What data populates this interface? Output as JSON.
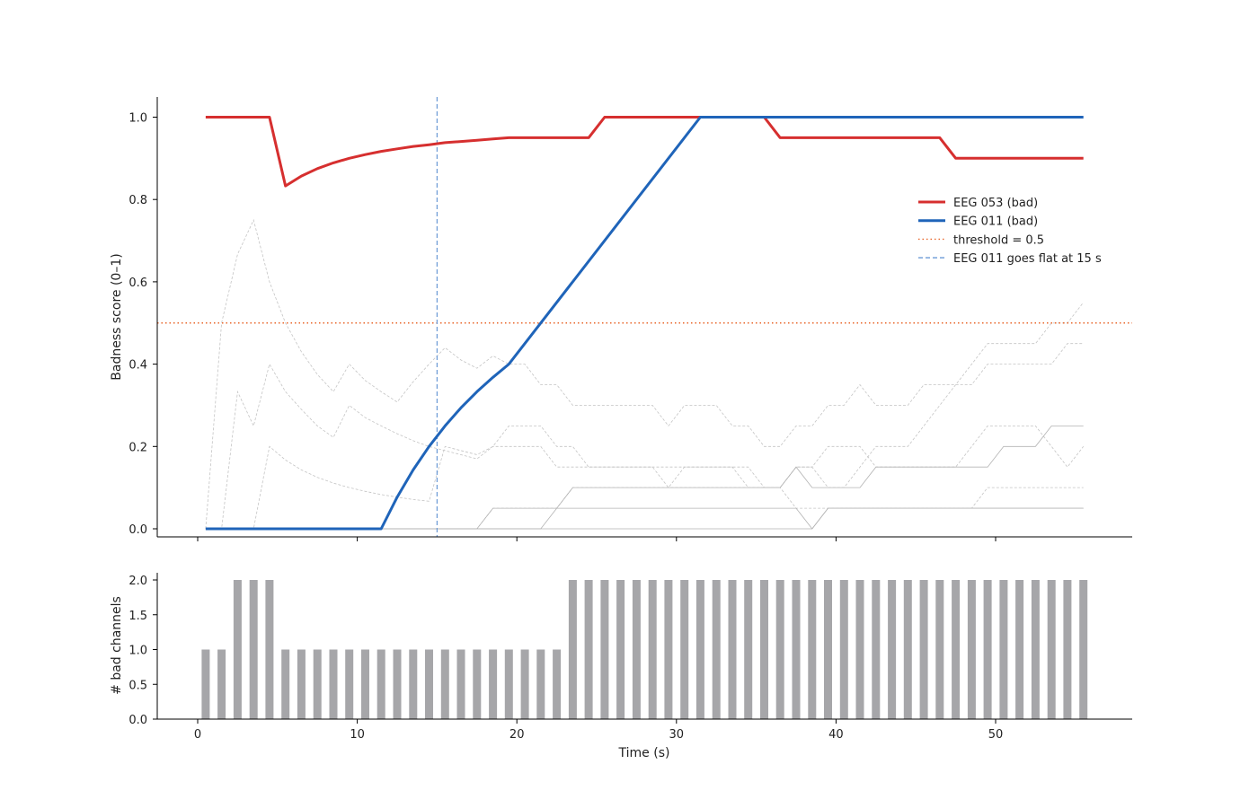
{
  "chart_data": [
    {
      "type": "line",
      "ylabel": "Badness score (0–1)",
      "xlim": [
        -2.5,
        58.5
      ],
      "ylim": [
        -0.02,
        1.05
      ],
      "xticks": [
        0,
        10,
        20,
        30,
        40,
        50
      ],
      "yticks": [
        0.0,
        0.2,
        0.4,
        0.6,
        0.8,
        1.0
      ],
      "ytick_labels": [
        "0.0",
        "0.2",
        "0.4",
        "0.6",
        "0.8",
        "1.0"
      ],
      "legend_position": "right",
      "legend": [
        {
          "label": "EEG 053 (bad)",
          "style": "solid",
          "color": "#d62f2f"
        },
        {
          "label": "EEG 011 (bad)",
          "style": "solid",
          "color": "#1f64b9"
        },
        {
          "label": "threshold = 0.5",
          "style": "dotted",
          "color": "#e8662a"
        },
        {
          "label": "EEG 011 goes flat at 15 s",
          "style": "dashed",
          "color": "#6b9ad6"
        }
      ],
      "threshold": {
        "y": 0.5,
        "color": "#e8662a"
      },
      "event_line": {
        "x": 15,
        "color": "#6b9ad6"
      },
      "series": [
        {
          "name": "EEG 053 (bad)",
          "color": "#d62f2f",
          "x": [
            0.5,
            4.5,
            5.5,
            6.5,
            7.5,
            8.5,
            9.5,
            10.5,
            11.5,
            12.5,
            13.5,
            14.5,
            15.5,
            16.5,
            17.5,
            18.5,
            19.5,
            20.5,
            21.5,
            22.5,
            23.5,
            24.5,
            25.5,
            31.5,
            35.5,
            36.5,
            46.5,
            47.5,
            55.5
          ],
          "y": [
            1.0,
            1.0,
            0.833,
            0.857,
            0.875,
            0.889,
            0.9,
            0.909,
            0.917,
            0.923,
            0.929,
            0.933,
            0.938,
            0.941,
            0.944,
            0.947,
            0.95,
            0.95,
            0.95,
            0.95,
            0.95,
            0.95,
            1.0,
            1.0,
            1.0,
            0.95,
            0.95,
            0.9,
            0.9
          ]
        },
        {
          "name": "EEG 011 (bad)",
          "color": "#1f64b9",
          "x": [
            0.5,
            11.5,
            12.5,
            13.5,
            14.5,
            15.5,
            16.5,
            17.5,
            18.5,
            19.5,
            31.5,
            55.5
          ],
          "y": [
            0.0,
            0.0,
            0.077,
            0.143,
            0.2,
            0.25,
            0.294,
            0.333,
            0.368,
            0.4,
            1.0,
            1.0
          ]
        }
      ],
      "background_series": [
        {
          "style": "dashed",
          "x": [
            0.5,
            1.5,
            2.5,
            3.5,
            4.5,
            5.5,
            6.5,
            7.5,
            8.5,
            9.5,
            10.5,
            11.5,
            12.5,
            13.5,
            14.5,
            15.5,
            16.5,
            17.5,
            18.5,
            19.5,
            20.5,
            21.5,
            22.5,
            23.5,
            24.5,
            25.5,
            26.5,
            27.5,
            28.5,
            29.5,
            30.5,
            31.5,
            32.5,
            33.5,
            34.5,
            35.5,
            36.5,
            37.5,
            38.5,
            39.5,
            40.5,
            41.5,
            42.5,
            43.5,
            44.5,
            45.5,
            46.5,
            47.5,
            48.5,
            49.5,
            50.5,
            51.5,
            52.5,
            53.5,
            54.5,
            55.5
          ],
          "y": [
            0.0,
            0.5,
            0.667,
            0.75,
            0.6,
            0.5,
            0.43,
            0.375,
            0.333,
            0.4,
            0.36,
            0.333,
            0.308,
            0.357,
            0.4,
            0.44,
            0.41,
            0.39,
            0.42,
            0.4,
            0.4,
            0.35,
            0.35,
            0.3,
            0.3,
            0.3,
            0.3,
            0.3,
            0.3,
            0.25,
            0.3,
            0.3,
            0.3,
            0.25,
            0.25,
            0.2,
            0.2,
            0.25,
            0.25,
            0.3,
            0.3,
            0.35,
            0.3,
            0.3,
            0.3,
            0.35,
            0.35,
            0.35,
            0.35,
            0.4,
            0.4,
            0.4,
            0.4,
            0.4,
            0.45,
            0.45
          ]
        },
        {
          "style": "dashed",
          "x": [
            0.5,
            1.5,
            2.5,
            3.5,
            4.5,
            5.5,
            6.5,
            7.5,
            8.5,
            9.5,
            10.5,
            11.5,
            12.5,
            13.5,
            14.5,
            15.5,
            16.5,
            17.5,
            18.5,
            19.5,
            20.5,
            21.5,
            22.5,
            23.5,
            24.5,
            25.5,
            26.5,
            27.5,
            28.5,
            29.5,
            30.5,
            31.5,
            32.5,
            33.5,
            34.5,
            35.5,
            36.5,
            37.5,
            38.5,
            39.5,
            40.5,
            41.5,
            42.5,
            43.5,
            44.5,
            45.5,
            46.5,
            47.5,
            48.5,
            49.5,
            50.5,
            51.5,
            52.5,
            53.5,
            54.5,
            55.5
          ],
          "y": [
            0.0,
            0.0,
            0.333,
            0.25,
            0.4,
            0.333,
            0.29,
            0.25,
            0.222,
            0.3,
            0.27,
            0.25,
            0.231,
            0.214,
            0.2,
            0.19,
            0.18,
            0.17,
            0.2,
            0.2,
            0.2,
            0.2,
            0.15,
            0.15,
            0.15,
            0.15,
            0.15,
            0.15,
            0.15,
            0.15,
            0.15,
            0.15,
            0.15,
            0.15,
            0.15,
            0.1,
            0.1,
            0.15,
            0.15,
            0.1,
            0.1,
            0.15,
            0.2,
            0.2,
            0.2,
            0.25,
            0.3,
            0.35,
            0.4,
            0.45,
            0.45,
            0.45,
            0.45,
            0.5,
            0.5,
            0.55
          ]
        },
        {
          "style": "dashed",
          "x": [
            0.5,
            1.5,
            2.5,
            3.5,
            4.5,
            5.5,
            6.5,
            7.5,
            8.5,
            9.5,
            10.5,
            11.5,
            12.5,
            13.5,
            14.5,
            15.5,
            16.5,
            17.5,
            18.5,
            19.5,
            20.5,
            21.5,
            22.5,
            23.5,
            24.5,
            25.5,
            26.5,
            27.5,
            28.5,
            29.5,
            30.5,
            31.5,
            32.5,
            33.5,
            34.5,
            35.5,
            36.5,
            37.5,
            38.5,
            39.5,
            40.5,
            41.5,
            42.5,
            43.5,
            44.5,
            45.5,
            46.5,
            47.5,
            48.5,
            49.5,
            50.5,
            51.5,
            52.5,
            53.5,
            54.5,
            55.5
          ],
          "y": [
            0.0,
            0.0,
            0.0,
            0.0,
            0.2,
            0.167,
            0.143,
            0.125,
            0.111,
            0.1,
            0.091,
            0.083,
            0.077,
            0.071,
            0.067,
            0.2,
            0.19,
            0.18,
            0.2,
            0.25,
            0.25,
            0.25,
            0.2,
            0.2,
            0.15,
            0.15,
            0.15,
            0.15,
            0.15,
            0.1,
            0.15,
            0.15,
            0.15,
            0.15,
            0.1,
            0.1,
            0.1,
            0.15,
            0.15,
            0.2,
            0.2,
            0.2,
            0.15,
            0.15,
            0.15,
            0.15,
            0.15,
            0.15,
            0.2,
            0.25,
            0.25,
            0.25,
            0.25,
            0.2,
            0.15,
            0.2
          ]
        },
        {
          "style": "dashed",
          "x": [
            0.5,
            17.5,
            18.5,
            19.5,
            20.5,
            21.5,
            22.5,
            23.5,
            24.5,
            25.5,
            26.5,
            27.5,
            28.5,
            29.5,
            30.5,
            31.5,
            32.5,
            33.5,
            34.5,
            35.5,
            36.5,
            37.5,
            38.5,
            39.5,
            40.5,
            41.5,
            42.5,
            43.5,
            44.5,
            45.5,
            46.5,
            47.5,
            48.5,
            49.5,
            50.5,
            51.5,
            52.5,
            53.5,
            54.5,
            55.5
          ],
          "y": [
            0.0,
            0.0,
            0.05,
            0.05,
            0.05,
            0.05,
            0.05,
            0.1,
            0.1,
            0.1,
            0.1,
            0.1,
            0.1,
            0.1,
            0.1,
            0.1,
            0.1,
            0.1,
            0.1,
            0.1,
            0.1,
            0.05,
            0.05,
            0.05,
            0.05,
            0.05,
            0.05,
            0.05,
            0.05,
            0.05,
            0.05,
            0.05,
            0.05,
            0.1,
            0.1,
            0.1,
            0.1,
            0.1,
            0.1,
            0.1
          ]
        },
        {
          "style": "solid",
          "x": [
            0.5,
            17.5,
            18.5,
            19.5,
            20.5,
            21.5,
            22.5,
            23.5,
            24.5,
            25.5,
            26.5,
            27.5,
            28.5,
            29.5,
            30.5,
            31.5,
            32.5,
            33.5,
            34.5,
            35.5,
            36.5,
            37.5,
            38.5,
            39.5,
            40.5,
            41.5,
            42.5,
            43.5,
            44.5,
            45.5,
            46.5,
            47.5,
            48.5,
            49.5,
            50.5,
            51.5,
            52.5,
            53.5,
            54.5,
            55.5
          ],
          "y": [
            0.0,
            0.0,
            0.0,
            0.0,
            0.0,
            0.0,
            0.05,
            0.1,
            0.1,
            0.1,
            0.1,
            0.1,
            0.1,
            0.1,
            0.1,
            0.1,
            0.1,
            0.1,
            0.1,
            0.1,
            0.1,
            0.15,
            0.1,
            0.1,
            0.1,
            0.1,
            0.15,
            0.15,
            0.15,
            0.15,
            0.15,
            0.15,
            0.15,
            0.15,
            0.2,
            0.2,
            0.2,
            0.25,
            0.25,
            0.25
          ]
        },
        {
          "style": "solid",
          "x": [
            0.5,
            17.5,
            18.5,
            19.5,
            20.5,
            21.5,
            22.5,
            23.5,
            24.5,
            25.5,
            26.5,
            27.5,
            28.5,
            29.5,
            30.5,
            31.5,
            32.5,
            33.5,
            34.5,
            35.5,
            36.5,
            37.5,
            38.5,
            39.5,
            40.5,
            41.5,
            42.5,
            43.5,
            44.5,
            45.5,
            46.5,
            47.5,
            48.5,
            49.5,
            50.5,
            51.5,
            52.5,
            53.5,
            54.5,
            55.5
          ],
          "y": [
            0.0,
            0.0,
            0.0,
            0.0,
            0.0,
            0.0,
            0.0,
            0.0,
            0.0,
            0.0,
            0.0,
            0.0,
            0.0,
            0.0,
            0.0,
            0.0,
            0.0,
            0.0,
            0.0,
            0.0,
            0.0,
            0.0,
            0.0,
            0.05,
            0.05,
            0.05,
            0.05,
            0.05,
            0.05,
            0.05,
            0.05,
            0.05,
            0.05,
            0.05,
            0.05,
            0.05,
            0.05,
            0.05,
            0.05,
            0.05
          ]
        },
        {
          "style": "solid",
          "x": [
            0.5,
            17.5,
            18.5,
            19.5,
            20.5,
            21.5,
            22.5,
            23.5,
            24.5,
            25.5,
            26.5,
            27.5,
            28.5,
            29.5,
            30.5,
            31.5,
            32.5,
            33.5,
            34.5,
            35.5,
            36.5,
            37.5,
            38.5,
            39.5,
            40.5,
            41.5,
            42.5,
            43.5,
            44.5,
            45.5,
            46.5,
            47.5,
            48.5,
            49.5,
            50.5,
            51.5,
            52.5,
            53.5,
            54.5,
            55.5
          ],
          "y": [
            0.0,
            0.0,
            0.05,
            0.05,
            0.05,
            0.05,
            0.05,
            0.05,
            0.05,
            0.05,
            0.05,
            0.05,
            0.05,
            0.05,
            0.05,
            0.05,
            0.05,
            0.05,
            0.05,
            0.05,
            0.05,
            0.05,
            0.0,
            0.05,
            0.05,
            0.05,
            0.05,
            0.05,
            0.05,
            0.05,
            0.05,
            0.05,
            0.05,
            0.05,
            0.05,
            0.05,
            0.05,
            0.05,
            0.05,
            0.05
          ]
        }
      ]
    },
    {
      "type": "bar",
      "xlabel": "Time (s)",
      "ylabel": "# bad channels",
      "xlim": [
        -2.5,
        58.5
      ],
      "ylim": [
        0,
        2.1
      ],
      "xticks": [
        0,
        10,
        20,
        30,
        40,
        50
      ],
      "yticks": [
        0.0,
        0.5,
        1.0,
        1.5,
        2.0
      ],
      "ytick_labels": [
        "0.0",
        "0.5",
        "1.0",
        "1.5",
        "2.0"
      ],
      "bar_color": "#a6a6a9",
      "x": [
        0.5,
        1.5,
        2.5,
        3.5,
        4.5,
        5.5,
        6.5,
        7.5,
        8.5,
        9.5,
        10.5,
        11.5,
        12.5,
        13.5,
        14.5,
        15.5,
        16.5,
        17.5,
        18.5,
        19.5,
        20.5,
        21.5,
        22.5,
        23.5,
        24.5,
        25.5,
        26.5,
        27.5,
        28.5,
        29.5,
        30.5,
        31.5,
        32.5,
        33.5,
        34.5,
        35.5,
        36.5,
        37.5,
        38.5,
        39.5,
        40.5,
        41.5,
        42.5,
        43.5,
        44.5,
        45.5,
        46.5,
        47.5,
        48.5,
        49.5,
        50.5,
        51.5,
        52.5,
        53.5,
        54.5,
        55.5
      ],
      "values": [
        1,
        1,
        2,
        2,
        2,
        1,
        1,
        1,
        1,
        1,
        1,
        1,
        1,
        1,
        1,
        1,
        1,
        1,
        1,
        1,
        1,
        1,
        1,
        2,
        2,
        2,
        2,
        2,
        2,
        2,
        2,
        2,
        2,
        2,
        2,
        2,
        2,
        2,
        2,
        2,
        2,
        2,
        2,
        2,
        2,
        2,
        2,
        2,
        2,
        2,
        2,
        2,
        2,
        2,
        2,
        2
      ]
    }
  ]
}
